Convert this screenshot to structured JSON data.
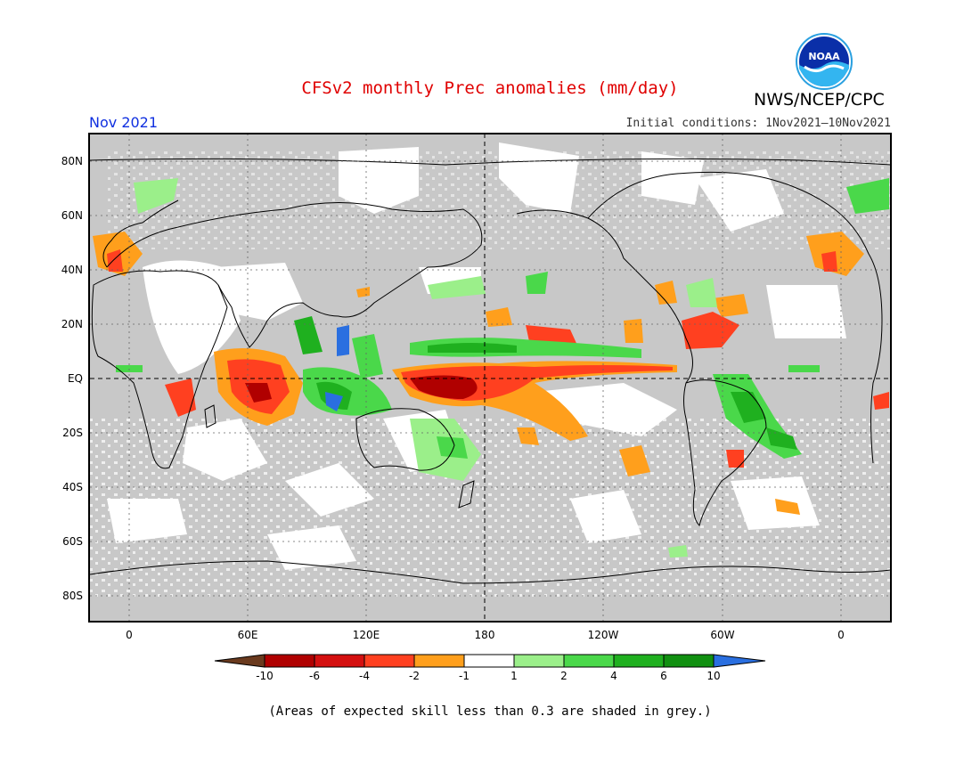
{
  "header": {
    "title": "CFSv2 monthly Prec anomalies (mm/day)",
    "agency": "NWS/NCEP/CPC",
    "month": "Nov 2021",
    "initial_conditions": "Initial conditions: 1Nov2021—10Nov2021",
    "logo_text": "NOAA"
  },
  "map": {
    "lat_labels": [
      "80N",
      "60N",
      "40N",
      "20N",
      "EQ",
      "20S",
      "40S",
      "60S",
      "80S"
    ],
    "lon_labels": [
      "0",
      "60E",
      "120E",
      "180",
      "120W",
      "60W",
      "0"
    ],
    "colors": {
      "grey_mask": "#c8c8c8",
      "coast": "#000000"
    }
  },
  "colorbar": {
    "tick_labels": [
      "-10",
      "-6",
      "-4",
      "-2",
      "-1",
      "1",
      "2",
      "4",
      "6",
      "10"
    ],
    "colors": [
      "#6a3a1e",
      "#b00000",
      "#d41010",
      "#ff4020",
      "#ff9f1c",
      "#ffffff",
      "#9bef8a",
      "#4ad84a",
      "#1fb01f",
      "#119011",
      "#2a6fe0"
    ]
  },
  "footnote": "(Areas of expected skill less than 0.3 are shaded in grey.)"
}
